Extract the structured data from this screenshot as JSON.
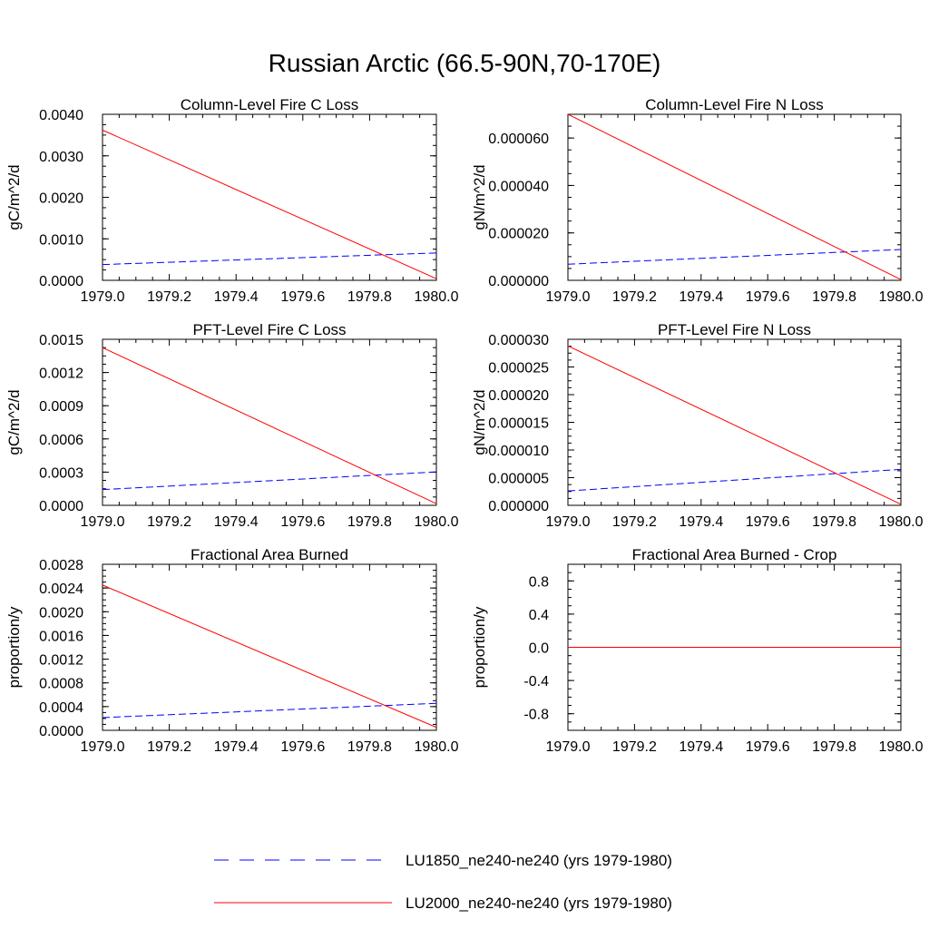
{
  "figure": {
    "title": "Russian Arctic (66.5-90N,70-170E)",
    "legend": {
      "placement": "bottom-center",
      "entries": [
        {
          "label": "LU1850_ne240-ne240 (yrs 1979-1980)",
          "color": "#0000ff",
          "style": "dashed"
        },
        {
          "label": "LU2000_ne240-ne240 (yrs 1979-1980)",
          "color": "#ff0000",
          "style": "solid"
        }
      ]
    }
  },
  "chart_data": [
    {
      "type": "line",
      "title": "Column-Level Fire C Loss",
      "ylabel": "gC/m^2/d",
      "xlim": [
        1979.0,
        1980.0
      ],
      "ylim": [
        0.0,
        0.004
      ],
      "xticks": [
        "1979.0",
        "1979.2",
        "1979.4",
        "1979.6",
        "1979.8",
        "1980.0"
      ],
      "yticks": [
        0.0,
        0.001,
        0.002,
        0.003,
        0.004
      ],
      "yticklabels": [
        "0.0000",
        "0.0010",
        "0.0020",
        "0.0030",
        "0.0040"
      ],
      "series": [
        {
          "name": "LU1850_ne240-ne240 (yrs 1979-1980)",
          "color": "#0000ff",
          "style": "dashed",
          "x": [
            1979.0,
            1980.0
          ],
          "y": [
            0.00038,
            0.00066
          ]
        },
        {
          "name": "LU2000_ne240-ne240 (yrs 1979-1980)",
          "color": "#ff0000",
          "style": "solid",
          "x": [
            1979.0,
            1980.0
          ],
          "y": [
            0.00362,
            4e-05
          ]
        }
      ]
    },
    {
      "type": "line",
      "title": "Column-Level Fire N Loss",
      "ylabel": "gN/m^2/d",
      "xlim": [
        1979.0,
        1980.0
      ],
      "ylim": [
        0.0,
        7e-05
      ],
      "xticks": [
        "1979.0",
        "1979.2",
        "1979.4",
        "1979.6",
        "1979.8",
        "1980.0"
      ],
      "yticks": [
        0.0,
        2e-05,
        4e-05,
        6e-05
      ],
      "yticklabels": [
        "0.000000",
        "0.000020",
        "0.000040",
        "0.000060"
      ],
      "series": [
        {
          "name": "LU1850_ne240-ne240 (yrs 1979-1980)",
          "color": "#0000ff",
          "style": "dashed",
          "x": [
            1979.0,
            1980.0
          ],
          "y": [
            6.8e-06,
            1.3e-05
          ]
        },
        {
          "name": "LU2000_ne240-ne240 (yrs 1979-1980)",
          "color": "#ff0000",
          "style": "solid",
          "x": [
            1979.0,
            1980.0
          ],
          "y": [
            7e-05,
            3e-07
          ]
        }
      ]
    },
    {
      "type": "line",
      "title": "PFT-Level Fire C Loss",
      "ylabel": "gC/m^2/d",
      "xlim": [
        1979.0,
        1980.0
      ],
      "ylim": [
        0.0,
        0.0015
      ],
      "xticks": [
        "1979.0",
        "1979.2",
        "1979.4",
        "1979.6",
        "1979.8",
        "1980.0"
      ],
      "yticks": [
        0.0,
        0.0003,
        0.0006,
        0.0009,
        0.0012,
        0.0015
      ],
      "yticklabels": [
        "0.0000",
        "0.0003",
        "0.0006",
        "0.0009",
        "0.0012",
        "0.0015"
      ],
      "series": [
        {
          "name": "LU1850_ne240-ne240 (yrs 1979-1980)",
          "color": "#0000ff",
          "style": "dashed",
          "x": [
            1979.0,
            1980.0
          ],
          "y": [
            0.000142,
            0.000302
          ]
        },
        {
          "name": "LU2000_ne240-ne240 (yrs 1979-1980)",
          "color": "#ff0000",
          "style": "solid",
          "x": [
            1979.0,
            1980.0
          ],
          "y": [
            0.001425,
            1.5e-05
          ]
        }
      ]
    },
    {
      "type": "line",
      "title": "PFT-Level Fire N Loss",
      "ylabel": "gN/m^2/d",
      "xlim": [
        1979.0,
        1980.0
      ],
      "ylim": [
        0.0,
        3e-05
      ],
      "xticks": [
        "1979.0",
        "1979.2",
        "1979.4",
        "1979.6",
        "1979.8",
        "1980.0"
      ],
      "yticks": [
        0.0,
        5e-06,
        1e-05,
        1.5e-05,
        2e-05,
        2.5e-05,
        3e-05
      ],
      "yticklabels": [
        "0.000000",
        "0.000005",
        "0.000010",
        "0.000015",
        "0.000020",
        "0.000025",
        "0.000030"
      ],
      "series": [
        {
          "name": "LU1850_ne240-ne240 (yrs 1979-1980)",
          "color": "#0000ff",
          "style": "dashed",
          "x": [
            1979.0,
            1980.0
          ],
          "y": [
            2.6e-06,
            6.5e-06
          ]
        },
        {
          "name": "LU2000_ne240-ne240 (yrs 1979-1980)",
          "color": "#ff0000",
          "style": "solid",
          "x": [
            1979.0,
            1980.0
          ],
          "y": [
            2.88e-05,
            2e-07
          ]
        }
      ]
    },
    {
      "type": "line",
      "title": "Fractional Area Burned",
      "ylabel": "proportion/y",
      "xlim": [
        1979.0,
        1980.0
      ],
      "ylim": [
        0.0,
        0.0028
      ],
      "xticks": [
        "1979.0",
        "1979.2",
        "1979.4",
        "1979.6",
        "1979.8",
        "1980.0"
      ],
      "yticks": [
        0.0,
        0.0004,
        0.0008,
        0.0012,
        0.0016,
        0.002,
        0.0024,
        0.0028
      ],
      "yticklabels": [
        "0.0000",
        "0.0004",
        "0.0008",
        "0.0012",
        "0.0016",
        "0.0020",
        "0.0024",
        "0.0028"
      ],
      "series": [
        {
          "name": "LU1850_ne240-ne240 (yrs 1979-1980)",
          "color": "#0000ff",
          "style": "dashed",
          "x": [
            1979.0,
            1980.0
          ],
          "y": [
            0.000215,
            0.000455
          ]
        },
        {
          "name": "LU2000_ne240-ne240 (yrs 1979-1980)",
          "color": "#ff0000",
          "style": "solid",
          "x": [
            1979.0,
            1980.0
          ],
          "y": [
            0.00245,
            5e-05
          ]
        }
      ]
    },
    {
      "type": "line",
      "title": "Fractional Area Burned - Crop",
      "ylabel": "proportion/y",
      "xlim": [
        1979.0,
        1980.0
      ],
      "ylim": [
        -1.0,
        1.0
      ],
      "xticks": [
        "1979.0",
        "1979.2",
        "1979.4",
        "1979.6",
        "1979.8",
        "1980.0"
      ],
      "yticks": [
        -0.8,
        -0.4,
        0.0,
        0.4,
        0.8
      ],
      "yticklabels": [
        "-0.8",
        "-0.4",
        "0.0",
        "0.4",
        "0.8"
      ],
      "series": [
        {
          "name": "LU1850_ne240-ne240 (yrs 1979-1980)",
          "color": "#0000ff",
          "style": "dashed",
          "x": [
            1979.0,
            1980.0
          ],
          "y": [
            0.0,
            0.0
          ]
        },
        {
          "name": "LU2000_ne240-ne240 (yrs 1979-1980)",
          "color": "#ff0000",
          "style": "solid",
          "x": [
            1979.0,
            1980.0
          ],
          "y": [
            0.0,
            0.0
          ]
        }
      ]
    }
  ]
}
